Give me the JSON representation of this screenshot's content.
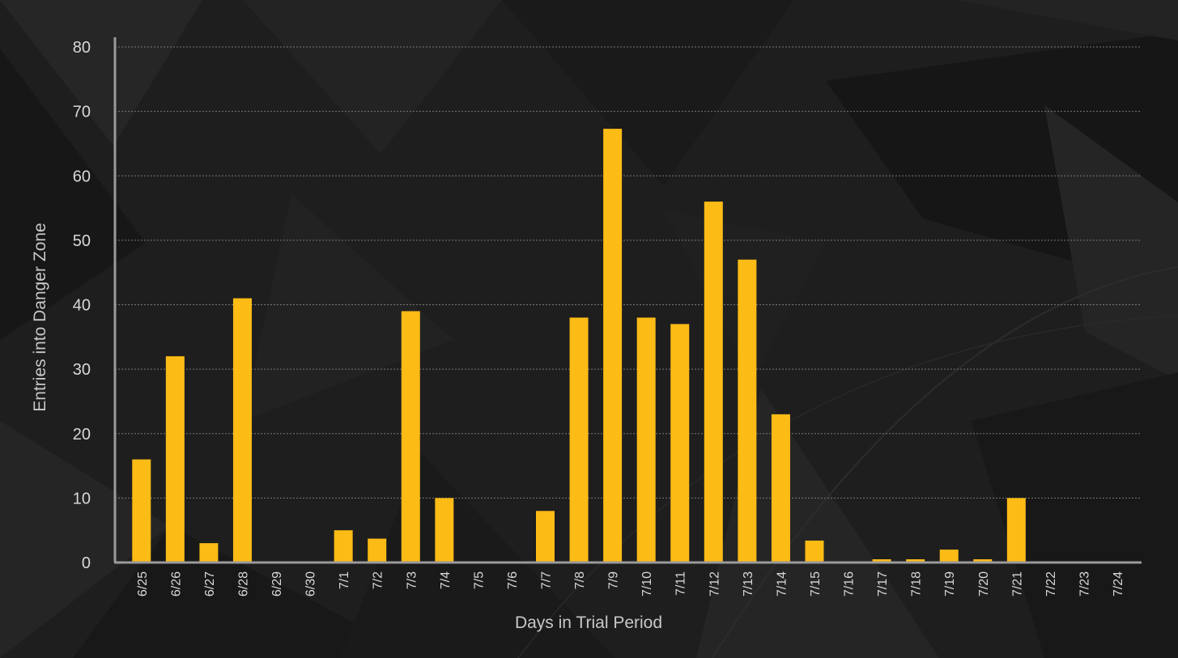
{
  "chart_data": {
    "type": "bar",
    "title": "",
    "xlabel": "Days in Trial Period",
    "ylabel": "Entries into Danger Zone",
    "ylim": [
      0,
      80
    ],
    "yticks": [
      0,
      10,
      20,
      30,
      40,
      50,
      60,
      70,
      80
    ],
    "grid": true,
    "legend": "none",
    "categories": [
      "6/25",
      "6/26",
      "6/27",
      "6/28",
      "6/29",
      "6/30",
      "7/1",
      "7/2",
      "7/3",
      "7/4",
      "7/5",
      "7/6",
      "7/7",
      "7/8",
      "7/9",
      "7/10",
      "7/11",
      "7/12",
      "7/13",
      "7/14",
      "7/15",
      "7/16",
      "7/17",
      "7/18",
      "7/19",
      "7/20",
      "7/21",
      "7/22",
      "7/23",
      "7/24"
    ],
    "values": [
      16,
      32,
      3,
      41,
      0,
      0,
      5,
      3.7,
      39,
      10,
      0,
      0,
      8,
      38,
      67.3,
      38,
      37,
      56,
      47,
      23,
      3.4,
      0,
      0.5,
      0.5,
      2,
      0.5,
      10,
      0,
      0,
      0
    ]
  },
  "colors": {
    "bar": "#fdbb16",
    "axis": "#9a9a9a",
    "grid": "#7a7a7a",
    "background": "#1e1e1e",
    "text": "#d8d8d8"
  }
}
